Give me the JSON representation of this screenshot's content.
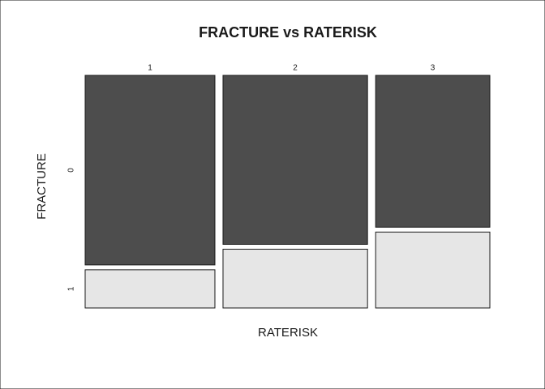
{
  "chart_data": {
    "type": "mosaic",
    "title": "FRACTURE vs RATERISK",
    "x_label": "RATERISK",
    "y_label": "FRACTURE",
    "categories": [
      "1",
      "2",
      "3"
    ],
    "series": [
      {
        "name": "0",
        "color": "#4d4d4d",
        "values": [
          139,
          138,
          98
        ]
      },
      {
        "name": "1",
        "color": "#e6e6e6",
        "values": [
          28,
          48,
          49
        ]
      }
    ]
  }
}
